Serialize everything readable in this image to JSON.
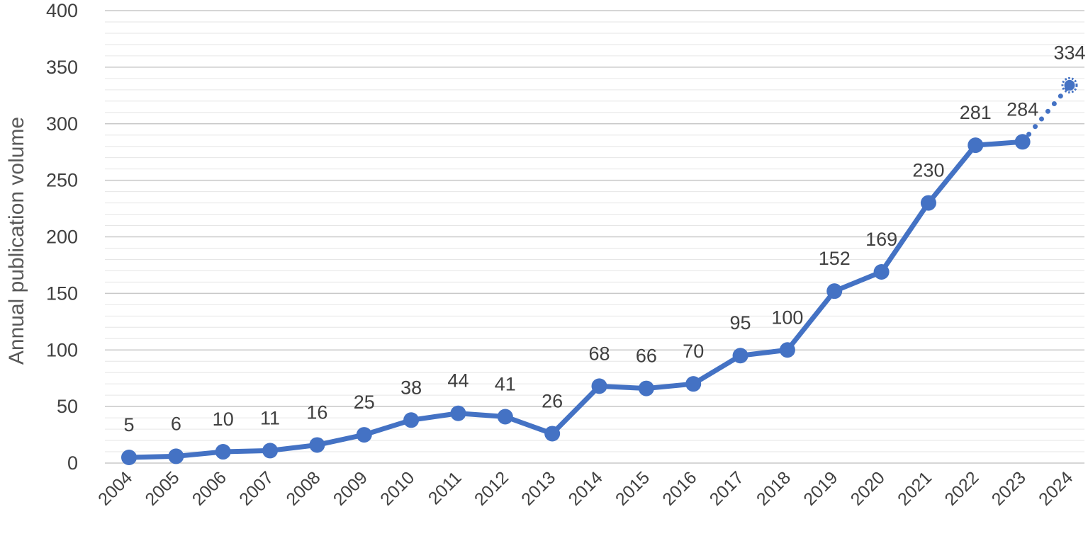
{
  "chart_data": {
    "type": "line",
    "title": "",
    "xlabel": "",
    "ylabel": "Annual publication volume",
    "ylim": [
      0,
      400
    ],
    "yticks": [
      0,
      50,
      100,
      150,
      200,
      250,
      300,
      350,
      400
    ],
    "grid": true,
    "legend": "none",
    "categories": [
      "2004",
      "2005",
      "2006",
      "2007",
      "2008",
      "2009",
      "2010",
      "2011",
      "2012",
      "2013",
      "2014",
      "2015",
      "2016",
      "2017",
      "2018",
      "2019",
      "2020",
      "2021",
      "2022",
      "2023",
      "2024"
    ],
    "series": [
      {
        "values": [
          5,
          6,
          10,
          11,
          16,
          25,
          38,
          44,
          41,
          26,
          68,
          66,
          70,
          95,
          100,
          152,
          169,
          230,
          281,
          284,
          334
        ],
        "color": "#4472C4",
        "projected_last_point": true
      }
    ]
  }
}
